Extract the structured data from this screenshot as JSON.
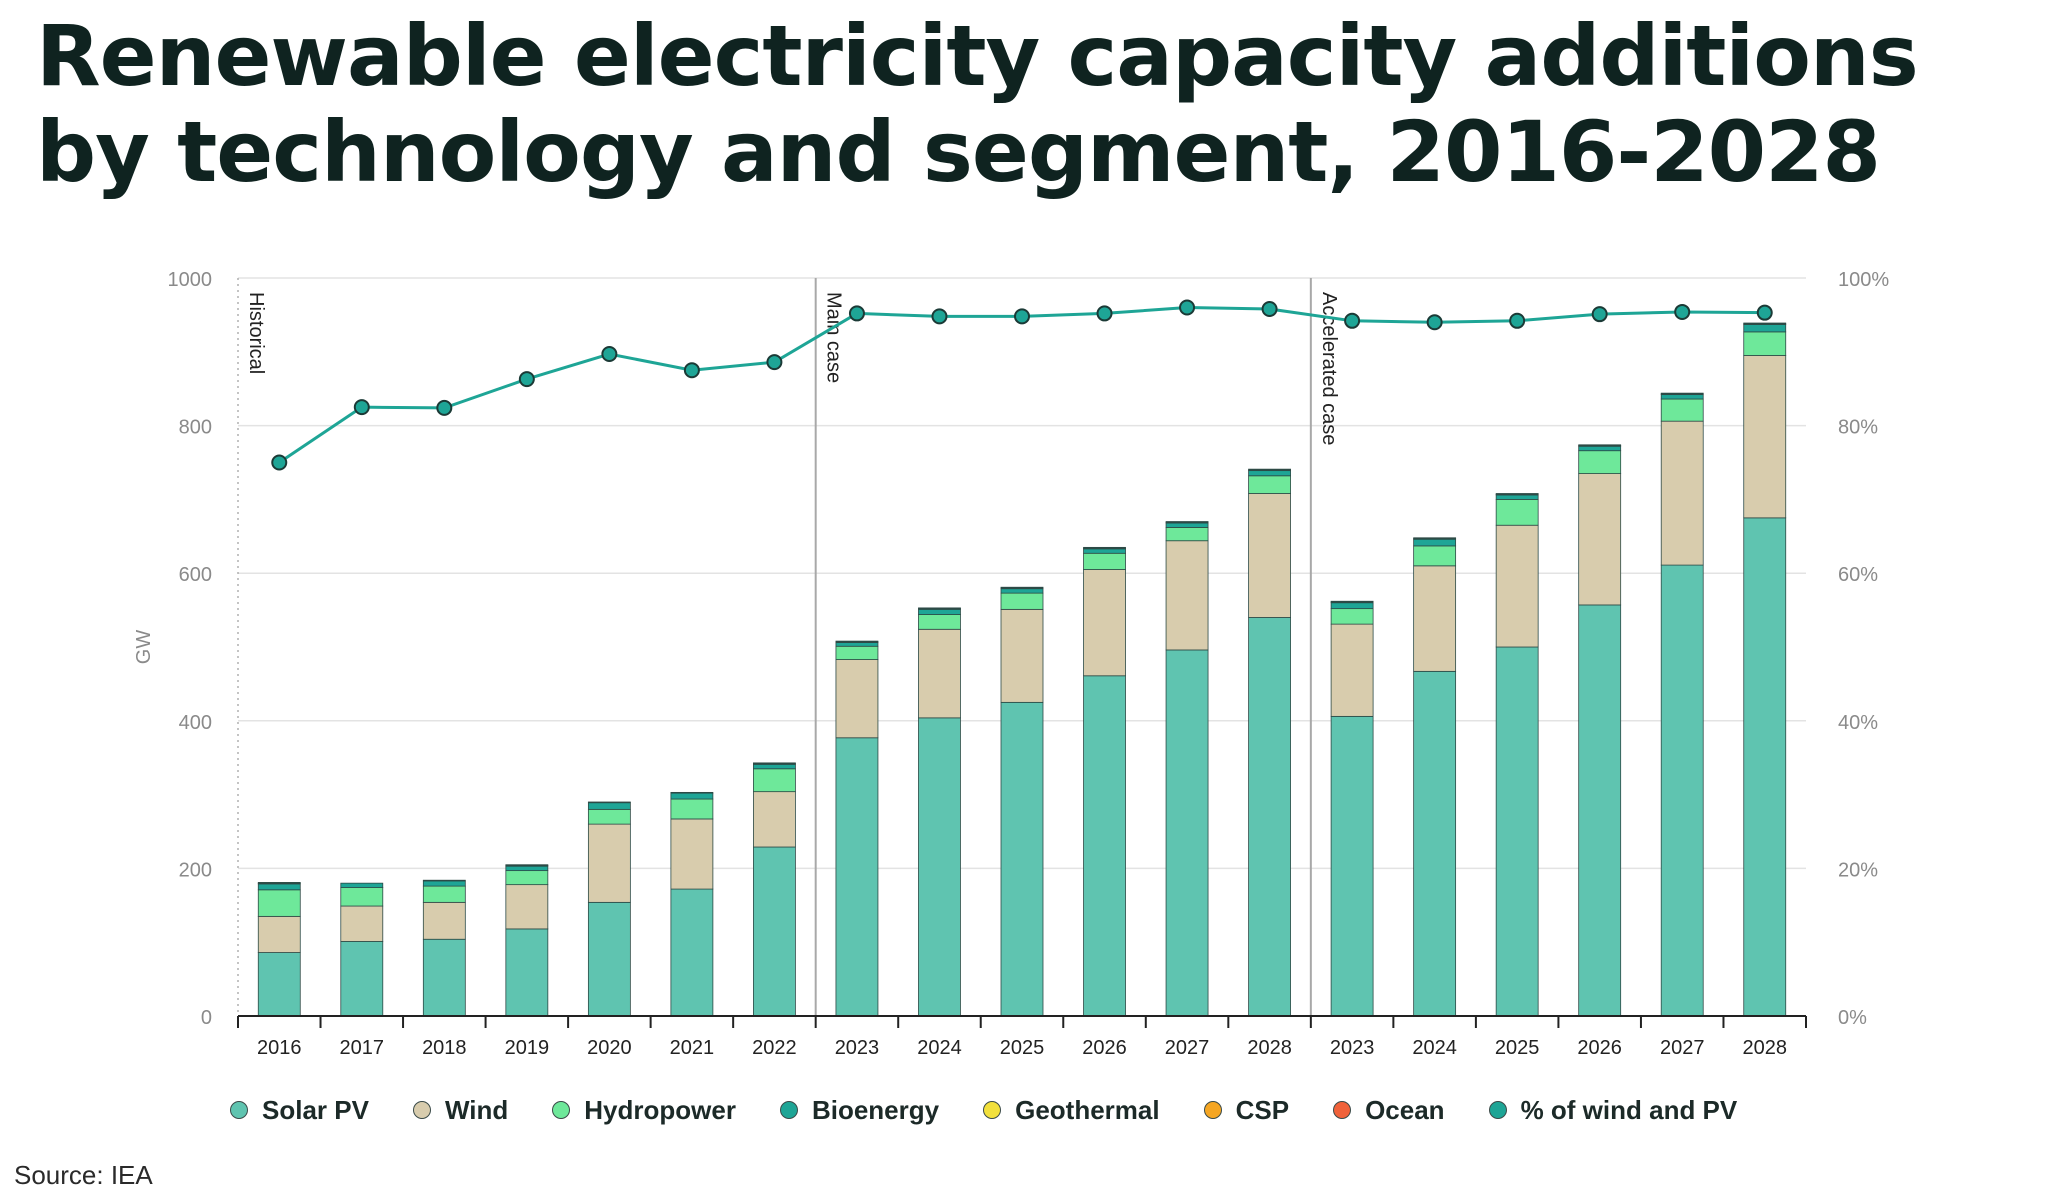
{
  "title": "Renewable electricity capacity additions by technology and segment, 2016-2028",
  "source": "Source: IEA",
  "colors": {
    "Solar PV": "#5fc4b0",
    "Wind": "#d8ccad",
    "Hydropower": "#6ee89a",
    "Bioenergy": "#1ea596",
    "Geothermal": "#f2e03c",
    "CSP": "#f5a623",
    "Ocean": "#f0623a",
    "% of wind and PV": "#1ea596"
  },
  "chart_data": {
    "type": "bar",
    "stacked": true,
    "ylabel": "GW",
    "ylim": [
      0,
      1000
    ],
    "yticks": [
      0,
      200,
      400,
      600,
      800,
      1000
    ],
    "y2lim": [
      0,
      100
    ],
    "y2ticks": [
      "0%",
      "20%",
      "40%",
      "60%",
      "80%",
      "100%"
    ],
    "segments": [
      "Historical",
      "Main case",
      "Accelerated case"
    ],
    "categories": [
      "2016",
      "2017",
      "2018",
      "2019",
      "2020",
      "2021",
      "2022",
      "2023",
      "2024",
      "2025",
      "2026",
      "2027",
      "2028",
      "2023",
      "2024",
      "2025",
      "2026",
      "2027",
      "2028"
    ],
    "series": [
      {
        "name": "Solar PV",
        "values": [
          86,
          101,
          104,
          118,
          154,
          172,
          229,
          377,
          404,
          425,
          461,
          496,
          540,
          406,
          467,
          500,
          557,
          611,
          675
        ]
      },
      {
        "name": "Wind",
        "values": [
          49,
          48,
          50,
          60,
          106,
          95,
          75,
          106,
          120,
          126,
          144,
          148,
          168,
          125,
          143,
          165,
          178,
          195,
          220
        ]
      },
      {
        "name": "Hydropower",
        "values": [
          36,
          25,
          22,
          19,
          20,
          27,
          31,
          18,
          20,
          22,
          22,
          18,
          24,
          21,
          27,
          35,
          31,
          30,
          32
        ]
      },
      {
        "name": "Bioenergy",
        "values": [
          8,
          6,
          7,
          6,
          9,
          8,
          6,
          5,
          7,
          6,
          6,
          6,
          7,
          8,
          9,
          6,
          6,
          6,
          10
        ]
      },
      {
        "name": "Geothermal",
        "values": [
          1,
          0,
          1,
          1,
          1,
          1,
          1,
          1,
          1,
          1,
          1,
          1,
          1,
          1,
          1,
          1,
          1,
          1,
          1
        ]
      },
      {
        "name": "CSP",
        "values": [
          1,
          0,
          0,
          1,
          0,
          0,
          1,
          1,
          1,
          1,
          1,
          1,
          1,
          1,
          1,
          1,
          1,
          1,
          1
        ]
      },
      {
        "name": "Ocean",
        "values": [
          0,
          0,
          0,
          0,
          0,
          0,
          0,
          0,
          0,
          0,
          0,
          0,
          0,
          0,
          0,
          0,
          0,
          0,
          0
        ]
      }
    ],
    "line": {
      "name": "% of wind and PV",
      "values": [
        75,
        82.5,
        82.4,
        86.3,
        89.7,
        87.5,
        88.6,
        95.2,
        94.8,
        94.8,
        95.2,
        96,
        95.8,
        94.2,
        94,
        94.2,
        95.1,
        95.4,
        95.3
      ]
    },
    "legend": [
      "Solar PV",
      "Wind",
      "Hydropower",
      "Bioenergy",
      "Geothermal",
      "CSP",
      "Ocean",
      "% of wind and PV"
    ]
  }
}
